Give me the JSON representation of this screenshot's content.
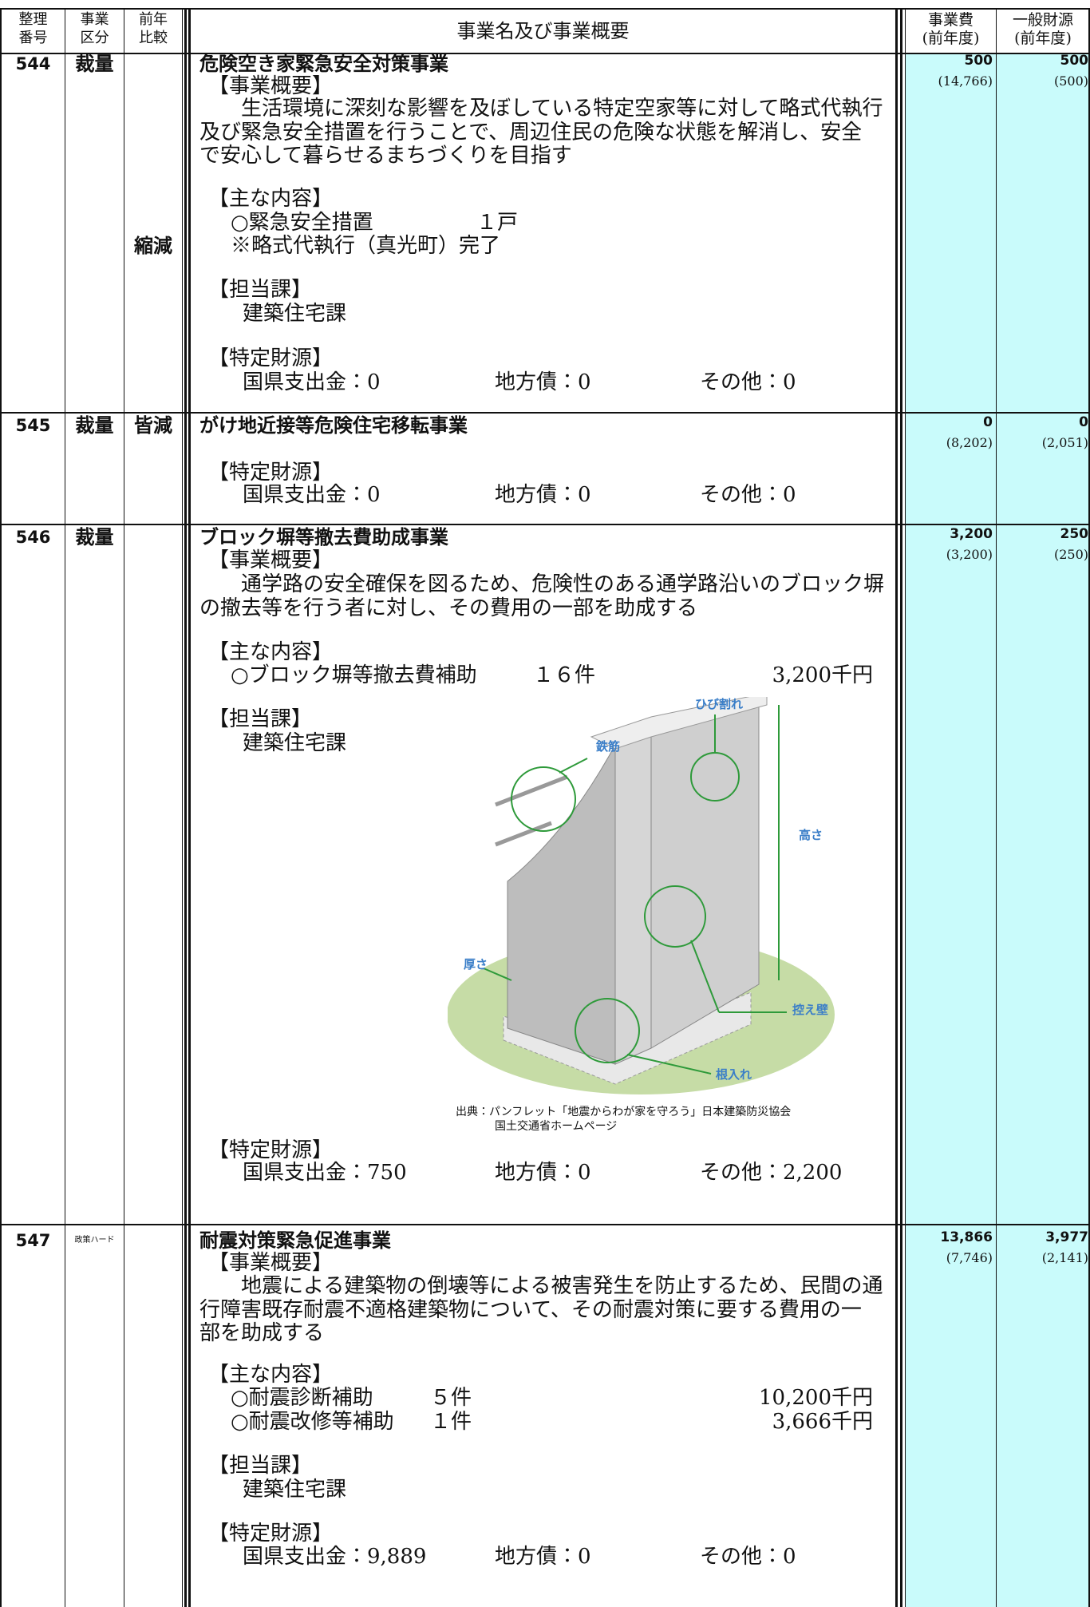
{
  "header": {
    "number": [
      "整理",
      "番号"
    ],
    "category": [
      "事業",
      "区分"
    ],
    "comparison": [
      "前年",
      "比較"
    ],
    "name": "事業名及び事業概要",
    "cost": [
      "事業費",
      "(前年度)"
    ],
    "general": [
      "一般財源",
      "(前年度)"
    ]
  },
  "rows": [
    {
      "number": "544",
      "category": "裁量",
      "comparison": "縮減",
      "title": "危険空き家緊急安全対策事業",
      "overview_heading": "【事業概要】",
      "overview": [
        "生活環境に深刻な影響を及ぼしている特定空家等に対して略式代執行",
        "及び緊急安全措置を行うことで、周辺住民の危険な状態を解消し、安全",
        "で安心して暮らせるまちづくりを目指す"
      ],
      "contents_heading": "【主な内容】",
      "contents": [
        [
          "○緊急安全措置",
          "１戸"
        ],
        [
          "※略式代執行（真光町）完了"
        ]
      ],
      "department_heading": "【担当課】",
      "department": "建築住宅課",
      "funding_heading": "【特定財源】",
      "funding": [
        "国県支出金：0",
        "地方債：0",
        "その他：0"
      ],
      "cost": "500",
      "cost_prev": "(14,766)",
      "general": "500",
      "general_prev": "(500)"
    },
    {
      "number": "545",
      "category": "裁量",
      "comparison": "皆減",
      "title": "がけ地近接等危険住宅移転事業",
      "funding_heading": "【特定財源】",
      "funding": [
        "国県支出金：0",
        "地方債：0",
        "その他：0"
      ],
      "cost": "0",
      "cost_prev": "(8,202)",
      "general": "0",
      "general_prev": "(2,051)"
    },
    {
      "number": "546",
      "category": "裁量",
      "title": "ブロック塀等撤去費助成事業",
      "overview_heading": "【事業概要】",
      "overview": [
        "通学路の安全確保を図るため、危険性のある通学路沿いのブロック塀",
        "の撤去等を行う者に対し、その費用の一部を助成する"
      ],
      "contents_heading": "【主な内容】",
      "contents": [
        [
          "○ブロック塀等撤去費補助",
          "１６件",
          "3,200千円"
        ]
      ],
      "department_heading": "【担当課】",
      "department": "建築住宅課",
      "funding_heading": "【特定財源】",
      "funding": [
        "国県支出金：750",
        "地方債：0",
        "その他：2,200"
      ],
      "cost": "3,200",
      "cost_prev": "(3,200)",
      "general": "250",
      "general_prev": "(250)"
    },
    {
      "number": "547",
      "category": "政策ハード",
      "title": "耐震対策緊急促進事業",
      "overview_heading": "【事業概要】",
      "overview": [
        "地震による建築物の倒壊等による被害発生を防止するため、民間の通",
        "行障害既存耐震不適格建築物について、その耐震対策に要する費用の一",
        "部を助成する"
      ],
      "contents_heading": "【主な内容】",
      "contents": [
        [
          "○耐震診断補助",
          "５件",
          "10,200千円"
        ],
        [
          "○耐震改修等補助",
          "１件",
          "3,666千円"
        ]
      ],
      "department_heading": "【担当課】",
      "department": "建築住宅課",
      "funding_heading": "【特定財源】",
      "funding": [
        "国県支出金：9,889",
        "地方債：0",
        "その他：0"
      ],
      "cost": "13,866",
      "cost_prev": "(7,746)",
      "general": "3,977",
      "general_prev": "(2,141)"
    }
  ],
  "figure": {
    "labels": [
      "ひび割れ",
      "鉄筋",
      "高さ",
      "厚さ",
      "控え壁",
      "根入れ"
    ],
    "caption": [
      "出典：パンフレット「地震からわが家を守ろう」日本建築防災協会",
      "国土交通省ホームページ"
    ]
  }
}
